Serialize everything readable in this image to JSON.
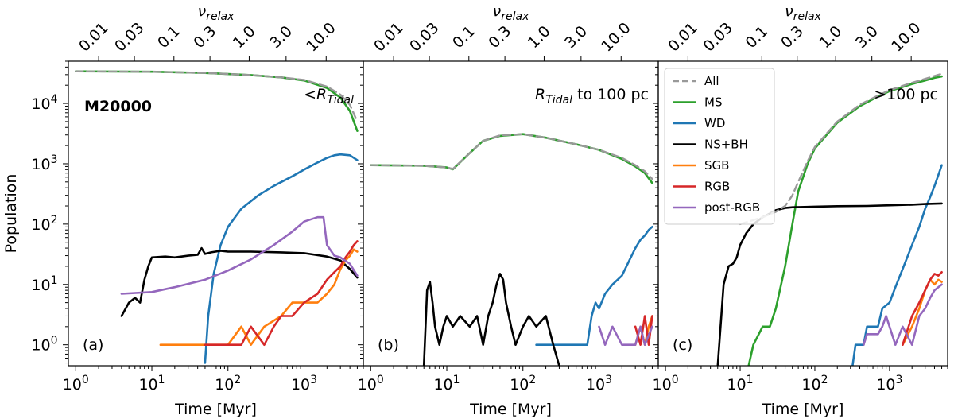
{
  "figure": {
    "ylabel": "Population",
    "xlabel": "Time [Myr]",
    "top_axis_label": "ν",
    "top_axis_label_sub": "relax",
    "cluster_label": "M20000"
  },
  "colors": {
    "All": "#999999",
    "MS": "#2ca02c",
    "WD": "#1f77b4",
    "NS+BH": "#000000",
    "SGB": "#ff7f0e",
    "RGB": "#d62728",
    "post-RGB": "#9467bd"
  },
  "legend": [
    {
      "name": "All",
      "style": "dashed"
    },
    {
      "name": "MS"
    },
    {
      "name": "WD"
    },
    {
      "name": "NS+BH"
    },
    {
      "name": "SGB"
    },
    {
      "name": "RGB"
    },
    {
      "name": "post-RGB"
    }
  ],
  "chart_data": [
    {
      "type": "line",
      "panel_label": "(a)",
      "region_label": "<R",
      "region_label_sub": "Tidal",
      "region_label_tail": "",
      "x_scale": "log",
      "y_scale": "log",
      "xlabel": "Time [Myr]",
      "ylabel": "Population",
      "xlim": [
        0.8,
        6000
      ],
      "ylim": [
        0.45,
        50000
      ],
      "x_ticks": [
        1,
        10,
        100,
        1000
      ],
      "x_tick_labels": [
        "10^0",
        "10^1",
        "10^2",
        "10^3"
      ],
      "y_ticks": [
        1,
        10,
        100,
        1000,
        10000
      ],
      "y_tick_labels": [
        "10^0",
        "10^1",
        "10^2",
        "10^3",
        "10^4"
      ],
      "top_axis_ticks": [
        0.01,
        0.03,
        0.1,
        0.3,
        1.0,
        3.0,
        10.0
      ],
      "top_axis_tick_labels": [
        "0.01",
        "0.03",
        "0.1",
        "0.3",
        "1.0",
        "3.0",
        "10.0"
      ],
      "top_axis_tick_times": [
        2.0,
        5.9,
        19.5,
        58,
        190,
        580,
        1950
      ],
      "series": [
        {
          "name": "All",
          "x": [
            1,
            10,
            50,
            200,
            500,
            1000,
            2000,
            3000,
            4000,
            5000
          ],
          "y": [
            34000,
            33500,
            32000,
            29500,
            27000,
            24500,
            19000,
            14000,
            9500,
            5000
          ]
        },
        {
          "name": "MS",
          "x": [
            1,
            10,
            50,
            200,
            500,
            1000,
            2000,
            3000,
            4000,
            5000
          ],
          "y": [
            34000,
            33500,
            32000,
            29500,
            27000,
            24000,
            18000,
            12500,
            7500,
            3500
          ]
        },
        {
          "name": "WD",
          "x": [
            50,
            55,
            65,
            80,
            100,
            150,
            250,
            400,
            700,
            1000,
            1500,
            2000,
            2500,
            3000,
            4000,
            5000
          ],
          "y": [
            0.5,
            3,
            15,
            45,
            90,
            180,
            300,
            430,
            620,
            800,
            1050,
            1250,
            1380,
            1430,
            1380,
            1150
          ]
        },
        {
          "name": "NS+BH",
          "x": [
            4,
            5,
            6,
            7,
            8,
            9,
            10,
            15,
            20,
            30,
            40,
            45,
            50,
            60,
            80,
            100,
            200,
            500,
            1000,
            2000,
            3000,
            4000,
            5000
          ],
          "y": [
            3,
            5,
            6,
            5,
            12,
            20,
            28,
            29,
            28,
            30,
            31,
            40,
            32,
            34,
            36,
            35,
            35,
            34,
            33,
            29,
            25,
            18,
            13
          ]
        },
        {
          "name": "SGB",
          "x": [
            13,
            25,
            40,
            80,
            100,
            150,
            200,
            300,
            500,
            700,
            1000,
            1500,
            2000,
            2500,
            3000,
            3500,
            4000,
            4500,
            5000
          ],
          "y": [
            1,
            1,
            1,
            1,
            1,
            2,
            1,
            2,
            3,
            5,
            5,
            5,
            7,
            10,
            18,
            25,
            30,
            38,
            35
          ]
        },
        {
          "name": "RGB",
          "x": [
            50,
            80,
            100,
            150,
            200,
            300,
            400,
            500,
            700,
            1000,
            1500,
            2000,
            2500,
            3000,
            3500,
            4000,
            4500,
            5000
          ],
          "y": [
            1,
            1,
            1,
            1,
            2,
            1,
            2,
            3,
            3,
            5,
            7,
            12,
            16,
            20,
            28,
            35,
            45,
            52
          ]
        },
        {
          "name": "post-RGB",
          "x": [
            4,
            10,
            20,
            50,
            100,
            200,
            400,
            700,
            1000,
            1500,
            1800,
            2000,
            2500,
            3000,
            4000,
            5000
          ],
          "y": [
            7,
            7.5,
            9,
            12,
            17,
            26,
            45,
            75,
            110,
            130,
            130,
            45,
            30,
            28,
            22,
            14
          ]
        }
      ]
    },
    {
      "type": "line",
      "panel_label": "(b)",
      "region_label": "R",
      "region_label_sub": "Tidal",
      "region_label_tail": " to 100 pc",
      "x_scale": "log",
      "y_scale": "log",
      "xlabel": "Time [Myr]",
      "ylabel": "",
      "xlim": [
        0.8,
        6000
      ],
      "ylim": [
        0.45,
        50000
      ],
      "x_ticks": [
        1,
        10,
        100,
        1000
      ],
      "x_tick_labels": [
        "10^0",
        "10^1",
        "10^2",
        "10^3"
      ],
      "top_axis_ticks": [
        0.01,
        0.03,
        0.1,
        0.3,
        1.0,
        3.0,
        10.0
      ],
      "top_axis_tick_labels": [
        "0.01",
        "0.03",
        "0.1",
        "0.3",
        "1.0",
        "3.0",
        "10.0"
      ],
      "top_axis_tick_times": [
        2.0,
        5.9,
        19.5,
        58,
        190,
        580,
        1950
      ],
      "series": [
        {
          "name": "All",
          "x": [
            1,
            5,
            10,
            12,
            20,
            30,
            50,
            100,
            200,
            500,
            1000,
            2000,
            3000,
            4000,
            5000
          ],
          "y": [
            950,
            930,
            870,
            820,
            1500,
            2400,
            2950,
            3100,
            2700,
            2100,
            1700,
            1250,
            950,
            750,
            560
          ]
        },
        {
          "name": "MS",
          "x": [
            1,
            5,
            10,
            12,
            20,
            30,
            50,
            100,
            200,
            500,
            1000,
            2000,
            3000,
            4000,
            5000
          ],
          "y": [
            950,
            930,
            870,
            810,
            1500,
            2400,
            2900,
            3100,
            2700,
            2100,
            1700,
            1200,
            900,
            700,
            480
          ]
        },
        {
          "name": "WD",
          "x": [
            150,
            250,
            300,
            700,
            800,
            900,
            1000,
            1200,
            1500,
            2000,
            2500,
            3000,
            3500,
            4000,
            4500,
            5000
          ],
          "y": [
            1,
            1,
            1,
            1,
            3,
            5,
            4,
            7,
            10,
            14,
            25,
            40,
            55,
            65,
            80,
            90
          ]
        },
        {
          "name": "NS+BH",
          "x": [
            5,
            5.5,
            6,
            6.5,
            7,
            8,
            9,
            10,
            12,
            15,
            20,
            25,
            30,
            35,
            40,
            45,
            50,
            55,
            60,
            70,
            80,
            100,
            120,
            150,
            200,
            250,
            300
          ],
          "y": [
            0.45,
            8,
            11,
            5,
            2,
            1,
            2,
            3,
            2,
            3,
            2,
            3,
            1,
            3,
            5,
            10,
            15,
            12,
            5,
            2,
            1,
            2,
            3,
            2,
            3,
            1,
            0.45
          ]
        },
        {
          "name": "SGB",
          "x": [
            3000,
            3500,
            4000,
            4500,
            5000
          ],
          "y": [
            1,
            2,
            1,
            2,
            3
          ]
        },
        {
          "name": "RGB",
          "x": [
            3000,
            3500,
            4000,
            4500,
            5000
          ],
          "y": [
            2,
            1,
            3,
            1,
            3
          ]
        },
        {
          "name": "post-RGB",
          "x": [
            1000,
            1200,
            1500,
            2000,
            3000,
            3500,
            4000,
            5000
          ],
          "y": [
            2,
            1,
            2,
            1,
            1,
            2,
            1,
            2
          ]
        }
      ]
    },
    {
      "type": "line",
      "panel_label": "(c)",
      "region_label": ">100 pc",
      "region_label_sub": "",
      "region_label_tail": "",
      "x_scale": "log",
      "y_scale": "log",
      "xlabel": "Time [Myr]",
      "ylabel": "",
      "xlim": [
        0.8,
        6000
      ],
      "ylim": [
        0.45,
        50000
      ],
      "x_ticks": [
        1,
        10,
        100,
        1000
      ],
      "x_tick_labels": [
        "10^0",
        "10^1",
        "10^2",
        "10^3"
      ],
      "top_axis_ticks": [
        0.01,
        0.03,
        0.1,
        0.3,
        1.0,
        3.0,
        10.0
      ],
      "top_axis_tick_labels": [
        "0.01",
        "0.03",
        "0.1",
        "0.3",
        "1.0",
        "3.0",
        "10.0"
      ],
      "top_axis_tick_times": [
        2.0,
        5.9,
        19.5,
        58,
        190,
        580,
        1950
      ],
      "legend_placement": "top-left",
      "series": [
        {
          "name": "All",
          "x": [
            10,
            20,
            30,
            40,
            50,
            60,
            80,
            100,
            200,
            400,
            700,
            1000,
            2000,
            3000,
            4000,
            5000
          ],
          "y": [
            100,
            130,
            160,
            200,
            300,
            500,
            1100,
            1900,
            5000,
            9500,
            13500,
            16500,
            22000,
            25500,
            28500,
            31000
          ]
        },
        {
          "name": "MS",
          "x": [
            13,
            15,
            20,
            25,
            30,
            40,
            50,
            60,
            80,
            100,
            200,
            400,
            700,
            1000,
            2000,
            3000,
            4000,
            5000
          ],
          "y": [
            0.45,
            1,
            2,
            2,
            4,
            20,
            100,
            350,
            1000,
            1800,
            4800,
            9000,
            13000,
            16000,
            21000,
            24000,
            26500,
            28000
          ]
        },
        {
          "name": "WD",
          "x": [
            320,
            350,
            450,
            500,
            700,
            800,
            1000,
            1200,
            1500,
            2000,
            2500,
            3000,
            3500,
            4000,
            4500,
            5000
          ],
          "y": [
            0.45,
            1,
            1,
            2,
            2,
            4,
            5,
            9,
            18,
            45,
            90,
            180,
            280,
            430,
            650,
            950
          ]
        },
        {
          "name": "NS+BH",
          "x": [
            5,
            6,
            7,
            8,
            9,
            10,
            12,
            15,
            20,
            25,
            30,
            40,
            50,
            100,
            200,
            500,
            1000,
            2000,
            3000,
            5000
          ],
          "y": [
            0.45,
            10,
            20,
            22,
            28,
            45,
            70,
            100,
            130,
            150,
            170,
            185,
            190,
            195,
            198,
            200,
            205,
            210,
            215,
            220
          ]
        },
        {
          "name": "SGB",
          "x": [
            1500,
            2000,
            2500,
            3000,
            3500,
            4000,
            4500,
            5000
          ],
          "y": [
            1,
            2,
            4,
            8,
            12,
            10,
            12,
            11
          ]
        },
        {
          "name": "RGB",
          "x": [
            1500,
            2000,
            2500,
            3000,
            3500,
            4000,
            4500,
            5000
          ],
          "y": [
            1,
            3,
            5,
            8,
            12,
            15,
            14,
            16
          ]
        },
        {
          "name": "post-RGB",
          "x": [
            450,
            500,
            700,
            800,
            900,
            1000,
            1200,
            1500,
            2000,
            2500,
            3000,
            3500,
            4000,
            4500,
            5000
          ],
          "y": [
            1,
            1.5,
            1.5,
            2,
            3,
            2,
            1,
            2,
            1,
            3,
            4,
            6,
            8,
            9,
            10
          ]
        }
      ]
    }
  ]
}
